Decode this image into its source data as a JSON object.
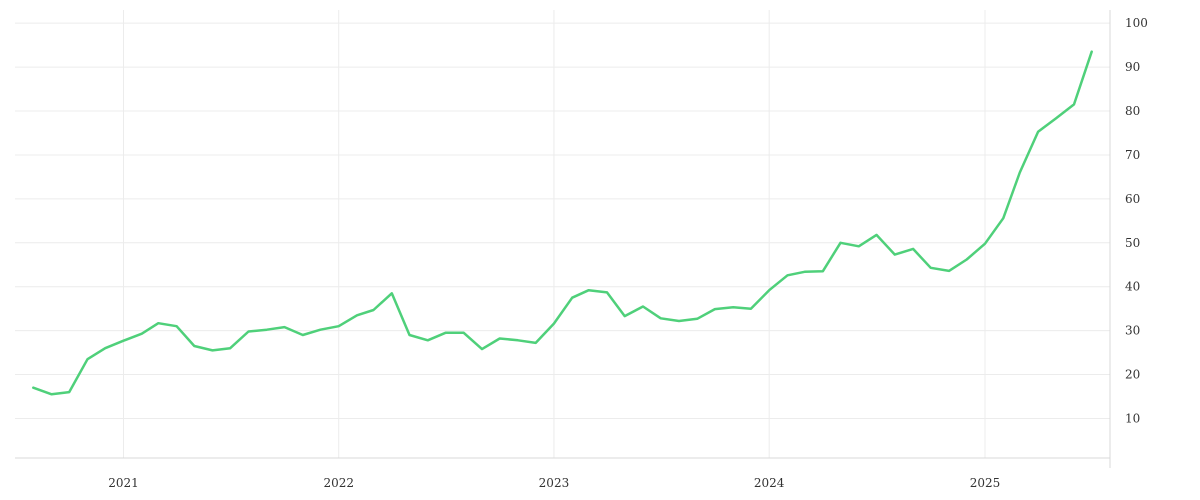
{
  "chart_data": {
    "type": "line",
    "title": "",
    "xlabel": "",
    "ylabel": "",
    "grid": true,
    "legend": "none",
    "y_axis_side": "right",
    "colors": {
      "series": "#4fd07a",
      "grid": "#ececec",
      "axis": "#d9d9d9",
      "text": "#333333"
    },
    "x_ticks": [
      "2021",
      "2022",
      "2023",
      "2024",
      "2025"
    ],
    "y_ticks": [
      10,
      20,
      30,
      40,
      50,
      60,
      70,
      80,
      90,
      100
    ],
    "xlim": [
      "2020-07-01",
      "2025-08-01"
    ],
    "ylim": [
      1,
      103
    ],
    "series": [
      {
        "x": [
          "2020-08-01",
          "2020-09-01",
          "2020-10-01",
          "2020-11-01",
          "2020-12-01",
          "2021-01-01",
          "2021-02-01",
          "2021-03-01",
          "2021-04-01",
          "2021-05-01",
          "2021-06-01",
          "2021-07-01",
          "2021-08-01",
          "2021-09-01",
          "2021-10-01",
          "2021-11-01",
          "2021-12-01",
          "2022-01-01",
          "2022-02-01",
          "2022-03-01",
          "2022-04-01",
          "2022-05-01",
          "2022-06-01",
          "2022-07-01",
          "2022-08-01",
          "2022-09-01",
          "2022-10-01",
          "2022-11-01",
          "2022-12-01",
          "2023-01-01",
          "2023-02-01",
          "2023-03-01",
          "2023-04-01",
          "2023-05-01",
          "2023-06-01",
          "2023-07-01",
          "2023-08-01",
          "2023-09-01",
          "2023-10-01",
          "2023-11-01",
          "2023-12-01",
          "2024-01-01",
          "2024-02-01",
          "2024-03-01",
          "2024-04-01",
          "2024-05-01",
          "2024-06-01",
          "2024-07-01",
          "2024-08-01",
          "2024-09-01",
          "2024-10-01",
          "2024-11-01",
          "2024-12-01",
          "2025-01-01",
          "2025-02-01",
          "2025-03-01",
          "2025-04-01",
          "2025-05-01",
          "2025-06-01",
          "2025-07-01"
        ],
        "values": [
          17,
          15.5,
          16,
          23.5,
          26,
          27.7,
          29.3,
          31.7,
          31,
          26.5,
          25.5,
          26,
          29.8,
          30.2,
          30.8,
          29,
          30.2,
          31,
          33.5,
          34.7,
          38.5,
          29,
          27.8,
          29.5,
          29.5,
          25.8,
          28.2,
          27.8,
          27.2,
          31.6,
          37.5,
          39.2,
          38.7,
          33.3,
          35.5,
          32.8,
          32.2,
          32.7,
          34.9,
          35.3,
          35,
          39.2,
          42.6,
          43.4,
          43.5,
          50,
          49.2,
          51.8,
          47.3,
          48.6,
          44.3,
          43.6,
          46.2,
          49.8,
          55.6,
          66,
          75.3,
          78.3,
          81.5,
          93.5
        ]
      }
    ]
  }
}
